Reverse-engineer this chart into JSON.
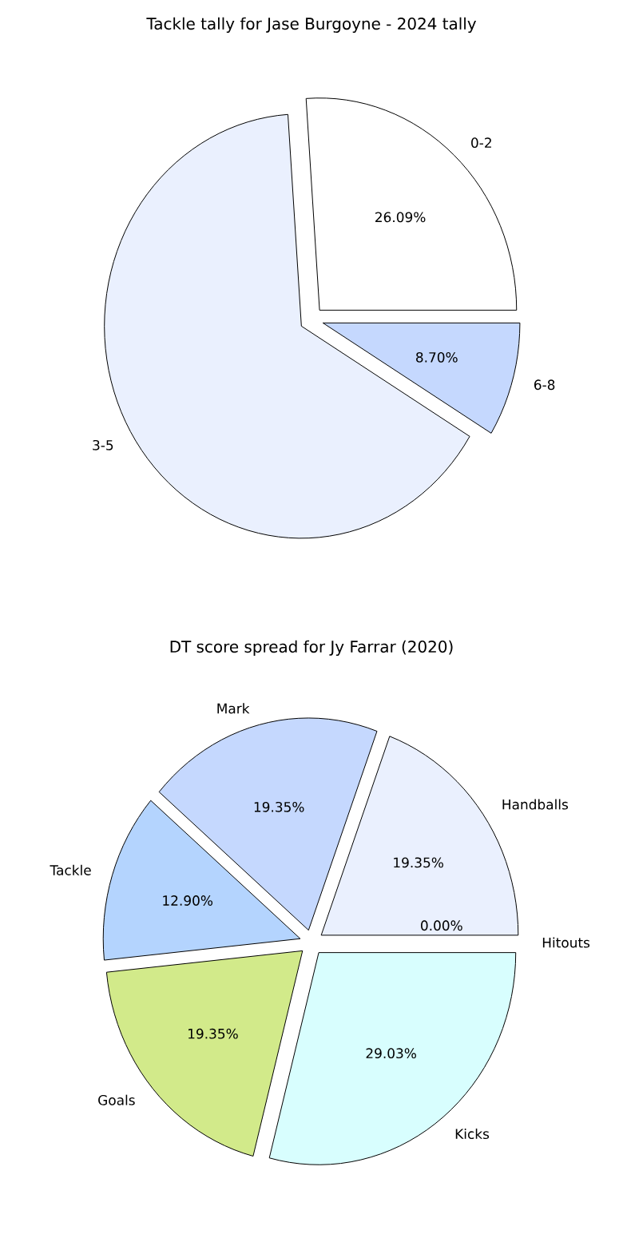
{
  "chart_data": [
    {
      "type": "pie",
      "title": "Tackle tally for Jase Burgoyne - 2024 tally",
      "categories": [
        "0-2",
        "3-5",
        "6-8"
      ],
      "values": [
        26.09,
        65.21,
        8.7
      ],
      "colors": [
        "#ffffff",
        "#eaf0fe",
        "#c5d8fe"
      ],
      "value_labels": [
        "26.09%",
        null,
        "8.70%"
      ]
    },
    {
      "type": "pie",
      "title": "DT score spread for Jy Farrar (2020)",
      "categories": [
        "Hitouts",
        "Handballs",
        "Mark",
        "Tackle",
        "Goals",
        "Kicks"
      ],
      "values": [
        0,
        19.35,
        19.35,
        12.9,
        19.35,
        29.03
      ],
      "colors": [
        "#ffffff",
        "#eaf0fe",
        "#c5d8fe",
        "#b4d4fe",
        "#d2ea8a",
        "#d8fefe"
      ],
      "value_labels": [
        "0.00%",
        "19.35%",
        "19.35%",
        "12.90%",
        "19.35%",
        "29.03%"
      ]
    }
  ]
}
